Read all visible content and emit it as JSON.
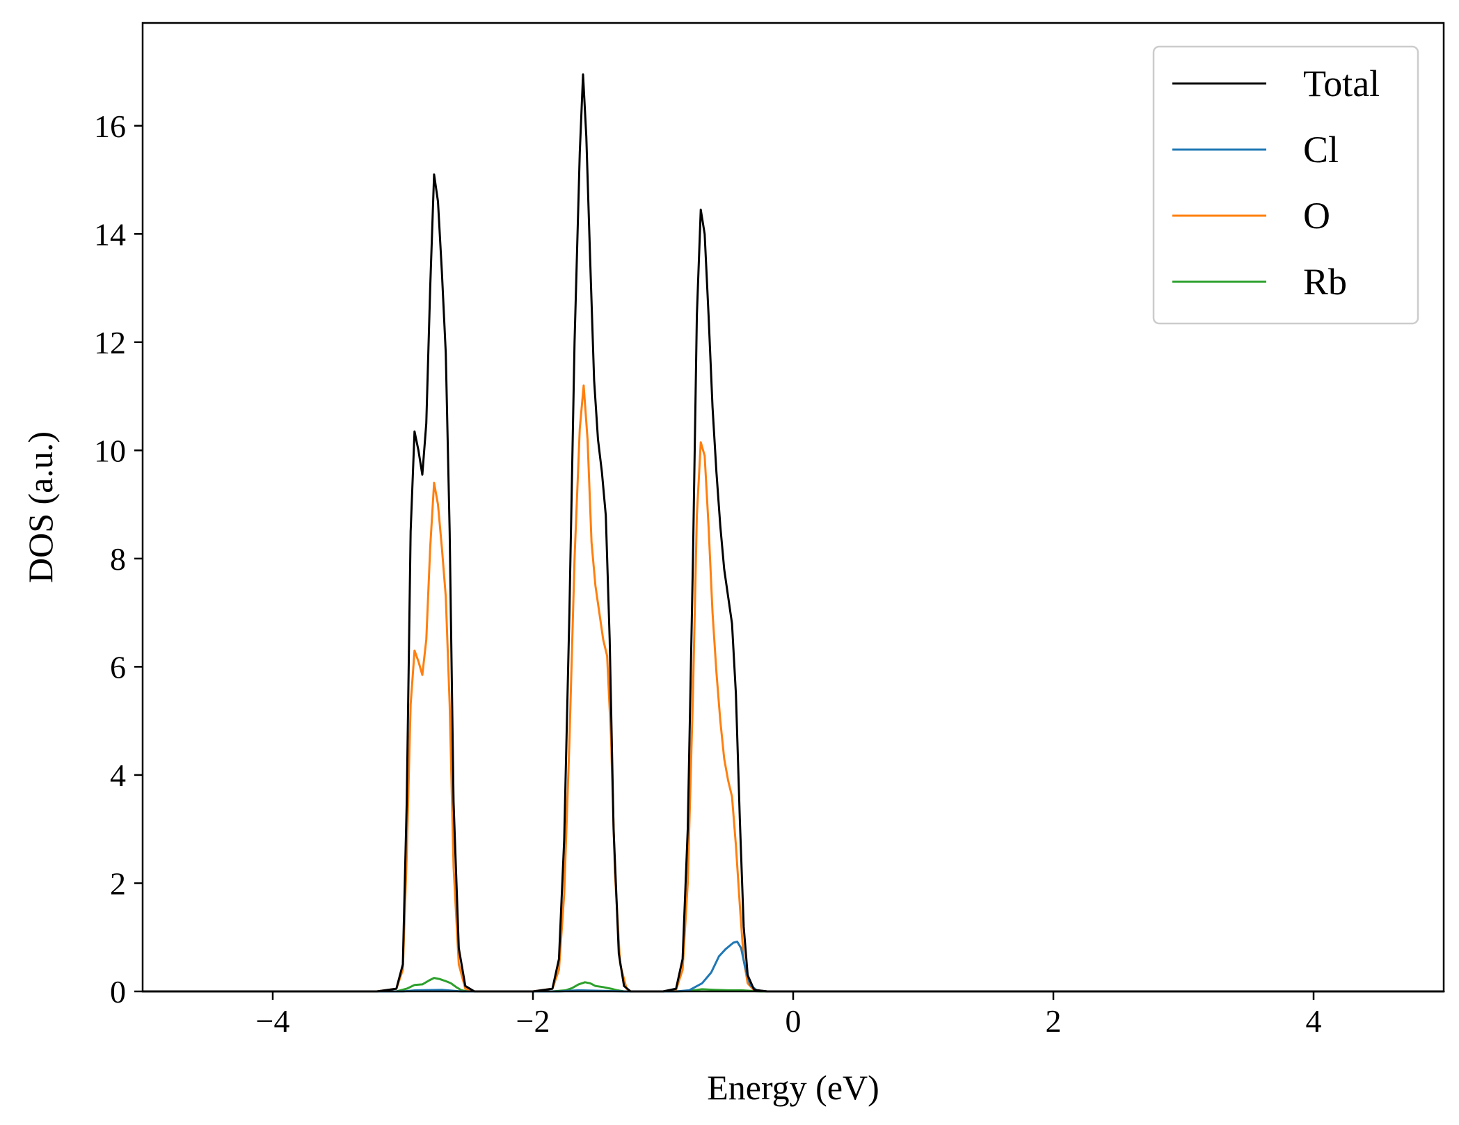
{
  "chart_data": {
    "type": "line",
    "xlabel": "Energy (eV)",
    "ylabel": "DOS (a.u.)",
    "xlim": [
      -5,
      5
    ],
    "ylim": [
      0,
      17.9
    ],
    "xticks": [
      -4,
      -2,
      0,
      2,
      4
    ],
    "xtick_labels": [
      "−4",
      "−2",
      "0",
      "2",
      "4"
    ],
    "yticks": [
      0,
      2,
      4,
      6,
      8,
      10,
      12,
      14,
      16
    ],
    "ytick_labels": [
      "0",
      "2",
      "4",
      "6",
      "8",
      "10",
      "12",
      "14",
      "16"
    ],
    "grid": false,
    "legend_position": "top-right",
    "series": [
      {
        "name": "Total",
        "color": "#000000",
        "points": [
          [
            -5,
            0
          ],
          [
            -3.2,
            0
          ],
          [
            -3.05,
            0.05
          ],
          [
            -3.0,
            0.5
          ],
          [
            -2.97,
            3.5
          ],
          [
            -2.94,
            8.5
          ],
          [
            -2.91,
            10.35
          ],
          [
            -2.88,
            10.0
          ],
          [
            -2.85,
            9.55
          ],
          [
            -2.82,
            10.5
          ],
          [
            -2.79,
            13.0
          ],
          [
            -2.76,
            15.1
          ],
          [
            -2.73,
            14.6
          ],
          [
            -2.7,
            13.3
          ],
          [
            -2.67,
            11.8
          ],
          [
            -2.64,
            8.5
          ],
          [
            -2.61,
            3.5
          ],
          [
            -2.57,
            0.8
          ],
          [
            -2.52,
            0.1
          ],
          [
            -2.45,
            0
          ],
          [
            -2.0,
            0
          ],
          [
            -1.85,
            0.05
          ],
          [
            -1.8,
            0.6
          ],
          [
            -1.76,
            2.8
          ],
          [
            -1.72,
            7.0
          ],
          [
            -1.68,
            12.0
          ],
          [
            -1.64,
            15.5
          ],
          [
            -1.615,
            16.95
          ],
          [
            -1.59,
            15.8
          ],
          [
            -1.56,
            13.5
          ],
          [
            -1.53,
            11.3
          ],
          [
            -1.5,
            10.2
          ],
          [
            -1.47,
            9.6
          ],
          [
            -1.44,
            8.8
          ],
          [
            -1.41,
            6.5
          ],
          [
            -1.38,
            3.0
          ],
          [
            -1.34,
            0.7
          ],
          [
            -1.3,
            0.1
          ],
          [
            -1.25,
            0
          ],
          [
            -1.0,
            0
          ],
          [
            -0.9,
            0.05
          ],
          [
            -0.85,
            0.6
          ],
          [
            -0.81,
            3.0
          ],
          [
            -0.77,
            8.0
          ],
          [
            -0.74,
            12.5
          ],
          [
            -0.71,
            14.45
          ],
          [
            -0.68,
            14.0
          ],
          [
            -0.65,
            12.5
          ],
          [
            -0.62,
            10.8
          ],
          [
            -0.59,
            9.6
          ],
          [
            -0.56,
            8.6
          ],
          [
            -0.53,
            7.8
          ],
          [
            -0.5,
            7.3
          ],
          [
            -0.47,
            6.8
          ],
          [
            -0.44,
            5.5
          ],
          [
            -0.41,
            3.2
          ],
          [
            -0.38,
            1.2
          ],
          [
            -0.35,
            0.3
          ],
          [
            -0.3,
            0.03
          ],
          [
            -0.2,
            0
          ],
          [
            5,
            0
          ]
        ]
      },
      {
        "name": "Cl",
        "color": "#1f77b4",
        "points": [
          [
            -5,
            0
          ],
          [
            -3.0,
            0
          ],
          [
            -2.9,
            0.02
          ],
          [
            -2.7,
            0.03
          ],
          [
            -2.55,
            0
          ],
          [
            -1.8,
            0
          ],
          [
            -1.65,
            0.02
          ],
          [
            -1.45,
            0.01
          ],
          [
            -1.3,
            0
          ],
          [
            -0.9,
            0
          ],
          [
            -0.8,
            0.02
          ],
          [
            -0.7,
            0.15
          ],
          [
            -0.63,
            0.35
          ],
          [
            -0.57,
            0.65
          ],
          [
            -0.52,
            0.78
          ],
          [
            -0.46,
            0.9
          ],
          [
            -0.43,
            0.92
          ],
          [
            -0.4,
            0.8
          ],
          [
            -0.37,
            0.45
          ],
          [
            -0.33,
            0.12
          ],
          [
            -0.28,
            0.02
          ],
          [
            -0.2,
            0
          ],
          [
            5,
            0
          ]
        ]
      },
      {
        "name": "O",
        "color": "#ff7f0e",
        "points": [
          [
            -5,
            0
          ],
          [
            -3.2,
            0
          ],
          [
            -3.05,
            0.05
          ],
          [
            -3.0,
            0.4
          ],
          [
            -2.97,
            2.5
          ],
          [
            -2.94,
            5.3
          ],
          [
            -2.91,
            6.3
          ],
          [
            -2.88,
            6.1
          ],
          [
            -2.85,
            5.85
          ],
          [
            -2.82,
            6.5
          ],
          [
            -2.79,
            8.2
          ],
          [
            -2.76,
            9.4
          ],
          [
            -2.73,
            9.0
          ],
          [
            -2.7,
            8.2
          ],
          [
            -2.67,
            7.3
          ],
          [
            -2.64,
            5.3
          ],
          [
            -2.61,
            2.3
          ],
          [
            -2.57,
            0.5
          ],
          [
            -2.52,
            0.05
          ],
          [
            -2.45,
            0
          ],
          [
            -2.0,
            0
          ],
          [
            -1.85,
            0.05
          ],
          [
            -1.8,
            0.4
          ],
          [
            -1.76,
            1.8
          ],
          [
            -1.72,
            4.6
          ],
          [
            -1.68,
            8.0
          ],
          [
            -1.64,
            10.4
          ],
          [
            -1.61,
            11.2
          ],
          [
            -1.58,
            10.2
          ],
          [
            -1.55,
            8.3
          ],
          [
            -1.52,
            7.5
          ],
          [
            -1.49,
            7.0
          ],
          [
            -1.46,
            6.5
          ],
          [
            -1.43,
            6.2
          ],
          [
            -1.4,
            4.7
          ],
          [
            -1.37,
            2.2
          ],
          [
            -1.33,
            0.5
          ],
          [
            -1.28,
            0.05
          ],
          [
            -1.25,
            0
          ],
          [
            -1.0,
            0
          ],
          [
            -0.9,
            0.03
          ],
          [
            -0.85,
            0.4
          ],
          [
            -0.81,
            2.0
          ],
          [
            -0.77,
            5.5
          ],
          [
            -0.74,
            8.8
          ],
          [
            -0.71,
            10.15
          ],
          [
            -0.68,
            9.9
          ],
          [
            -0.65,
            8.6
          ],
          [
            -0.62,
            7.0
          ],
          [
            -0.59,
            5.9
          ],
          [
            -0.56,
            5.0
          ],
          [
            -0.53,
            4.3
          ],
          [
            -0.5,
            3.9
          ],
          [
            -0.47,
            3.6
          ],
          [
            -0.44,
            2.7
          ],
          [
            -0.41,
            1.6
          ],
          [
            -0.38,
            0.6
          ],
          [
            -0.35,
            0.15
          ],
          [
            -0.3,
            0.02
          ],
          [
            -0.2,
            0
          ],
          [
            5,
            0
          ]
        ]
      },
      {
        "name": "Rb",
        "color": "#2ca02c",
        "points": [
          [
            -5,
            0
          ],
          [
            -3.05,
            0
          ],
          [
            -2.97,
            0.05
          ],
          [
            -2.91,
            0.12
          ],
          [
            -2.85,
            0.13
          ],
          [
            -2.8,
            0.2
          ],
          [
            -2.76,
            0.25
          ],
          [
            -2.72,
            0.23
          ],
          [
            -2.67,
            0.19
          ],
          [
            -2.63,
            0.15
          ],
          [
            -2.59,
            0.08
          ],
          [
            -2.55,
            0.02
          ],
          [
            -2.5,
            0
          ],
          [
            -1.85,
            0
          ],
          [
            -1.75,
            0.02
          ],
          [
            -1.7,
            0.06
          ],
          [
            -1.65,
            0.13
          ],
          [
            -1.6,
            0.17
          ],
          [
            -1.56,
            0.15
          ],
          [
            -1.52,
            0.1
          ],
          [
            -1.46,
            0.08
          ],
          [
            -1.4,
            0.05
          ],
          [
            -1.35,
            0.02
          ],
          [
            -1.3,
            0
          ],
          [
            -0.9,
            0
          ],
          [
            -0.8,
            0.01
          ],
          [
            -0.7,
            0.04
          ],
          [
            -0.6,
            0.03
          ],
          [
            -0.5,
            0.02
          ],
          [
            -0.4,
            0.02
          ],
          [
            -0.32,
            0.01
          ],
          [
            -0.25,
            0
          ],
          [
            5,
            0
          ]
        ]
      }
    ]
  }
}
